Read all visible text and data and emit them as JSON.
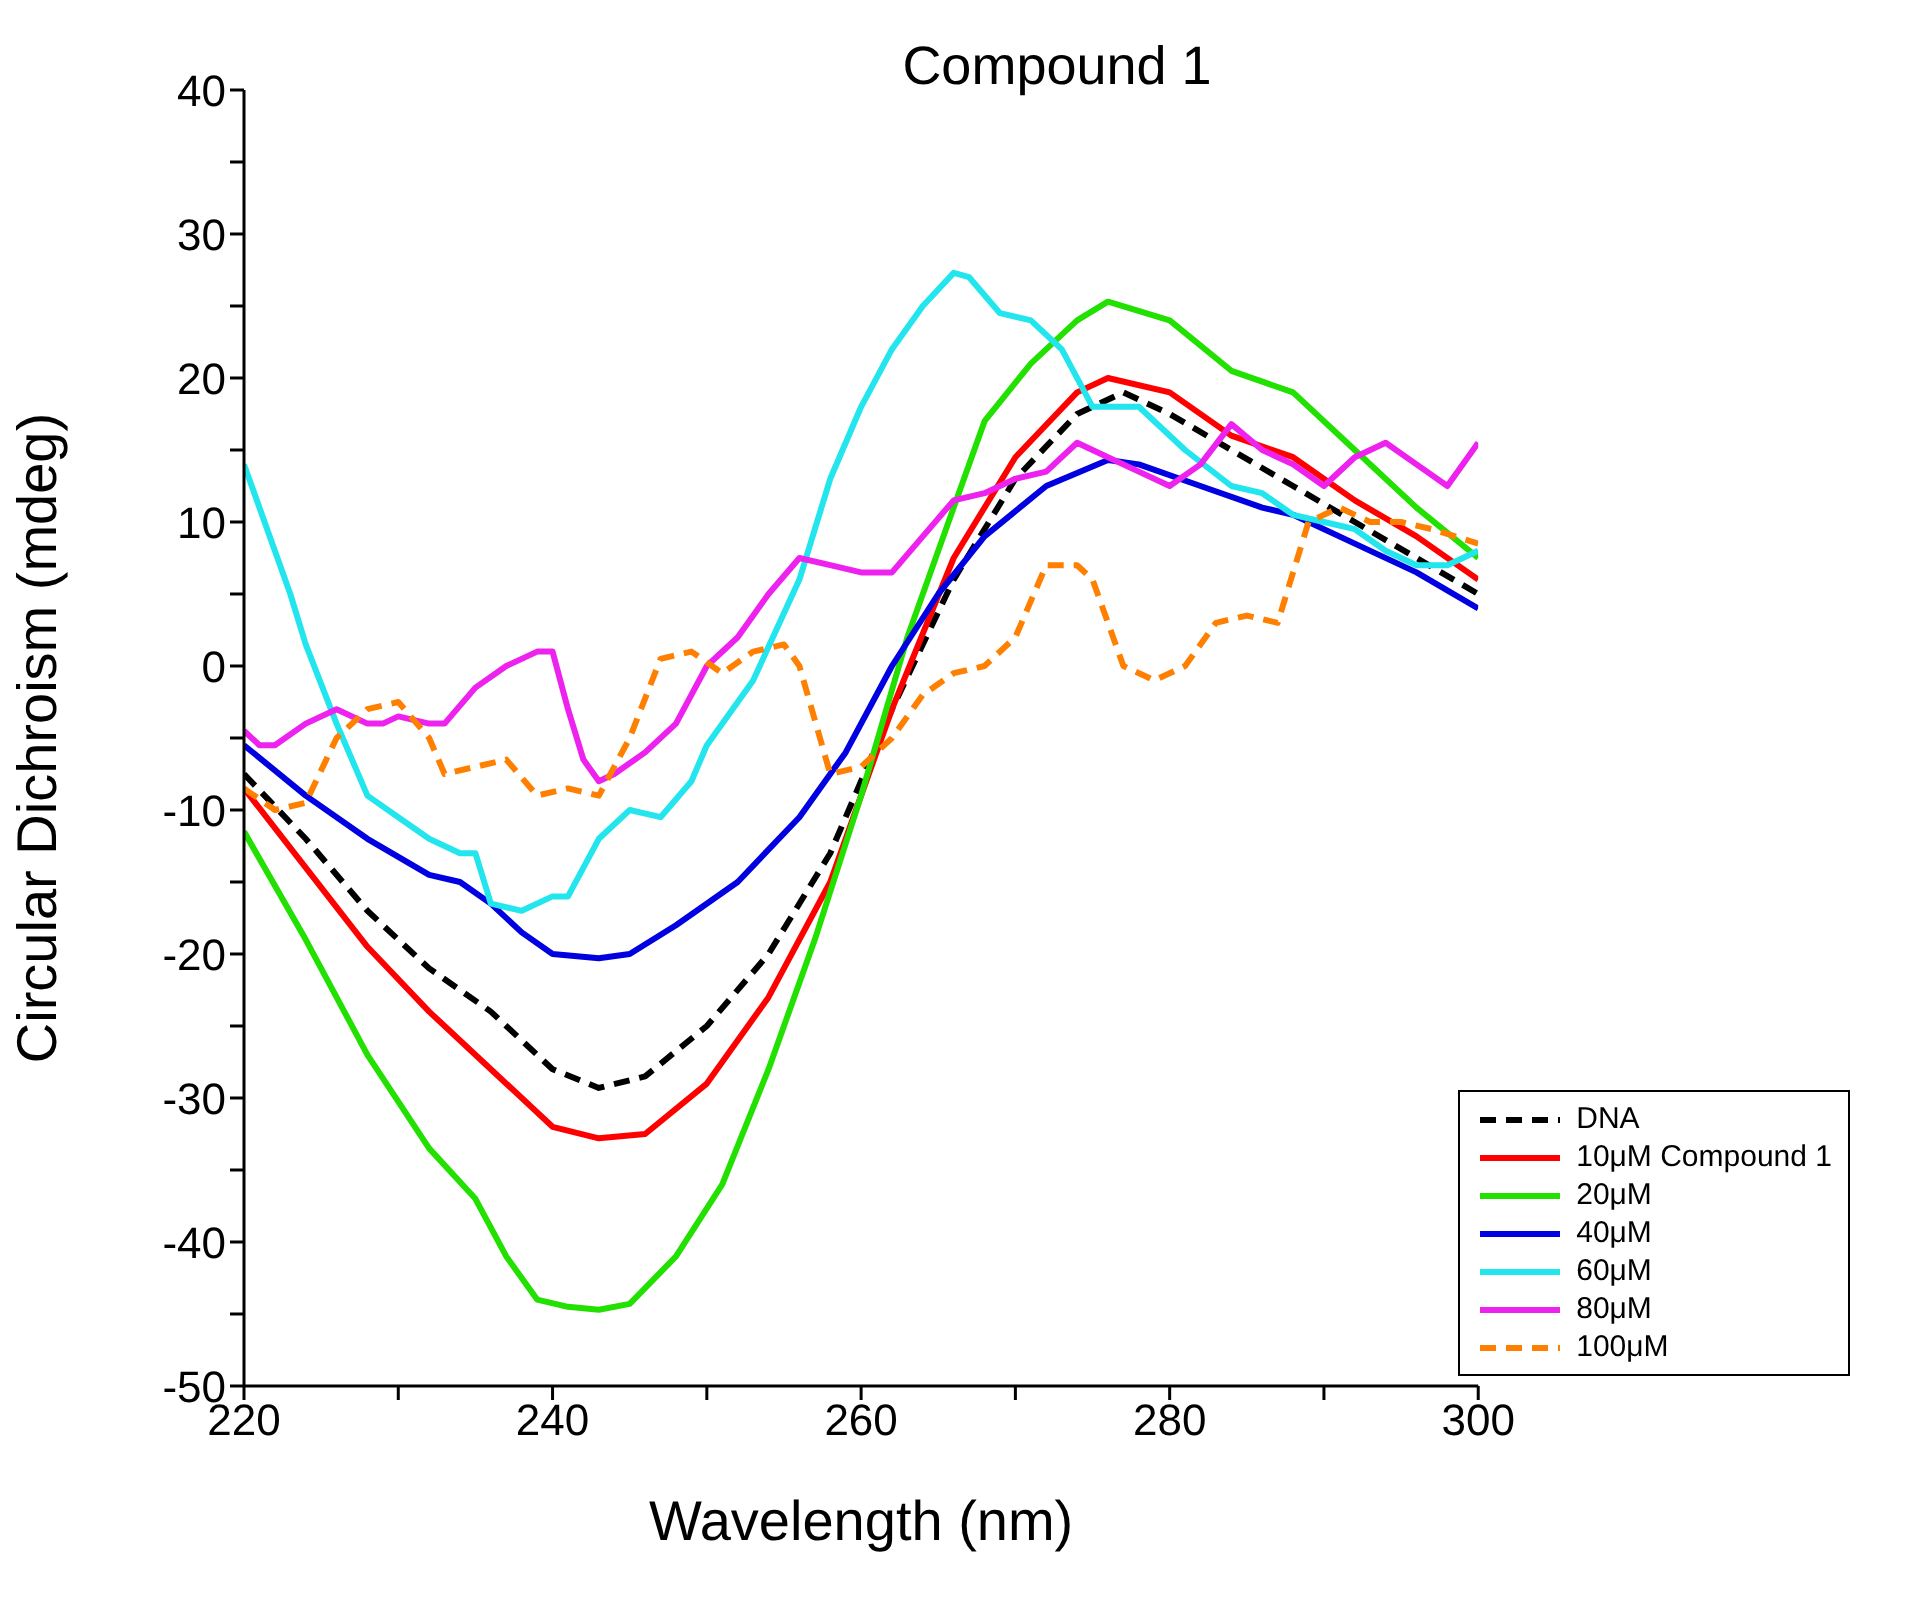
{
  "chart_data": {
    "type": "line",
    "title": "Compound 1",
    "xlabel": "Wavelength (nm)",
    "ylabel": "Circular Dichroism (mdeg)",
    "xlim": [
      220,
      300
    ],
    "xticks": [
      220,
      {
        "value": 230,
        "label": null
      },
      240,
      {
        "value": 250,
        "label": null
      },
      260,
      {
        "value": 270,
        "label": null
      },
      280,
      {
        "value": 290,
        "label": null
      },
      300
    ],
    "ylim": [
      -50,
      40
    ],
    "yticks": [
      -50,
      {
        "value": -45,
        "label": null
      },
      -40,
      {
        "value": -35,
        "label": null
      },
      -30,
      {
        "value": -25,
        "label": null
      },
      -20,
      {
        "value": -15,
        "label": null
      },
      -10,
      {
        "value": -5,
        "label": null
      },
      0,
      {
        "value": 5,
        "label": null
      },
      10,
      {
        "value": 15,
        "label": null
      },
      20,
      {
        "value": 25,
        "label": null
      },
      30,
      {
        "value": 35,
        "label": null
      },
      40
    ],
    "grid": false,
    "legend": "bottom right",
    "marker": "none",
    "series": [
      {
        "name": "DNA",
        "color": "#000000",
        "line_style": "dashed",
        "x": [
          220,
          224,
          228,
          232,
          236,
          240,
          243,
          246,
          250,
          254,
          258,
          262,
          266,
          270,
          274,
          277,
          280,
          284,
          288,
          292,
          296,
          300
        ],
        "values": [
          -7.5,
          -12,
          -17,
          -21,
          -24,
          -28,
          -29.3,
          -28.5,
          -25,
          -20,
          -13,
          -3,
          6,
          13,
          17.5,
          19,
          17.5,
          15,
          12.5,
          10,
          7.5,
          5
        ]
      },
      {
        "name": "10μM Compound 1",
        "color": "#ff0000",
        "line_style": "solid",
        "x": [
          220,
          224,
          228,
          232,
          236,
          240,
          243,
          246,
          250,
          254,
          258,
          262,
          266,
          270,
          274,
          276,
          280,
          284,
          288,
          292,
          296,
          300
        ],
        "values": [
          -8.5,
          -14,
          -19.5,
          -24,
          -28,
          -32,
          -32.8,
          -32.5,
          -29,
          -23,
          -15,
          -3,
          7.5,
          14.5,
          19,
          20,
          19,
          16,
          14.5,
          11.5,
          9,
          6
        ]
      },
      {
        "name": "20μM",
        "color": "#22e000",
        "line_style": "solid",
        "x": [
          220,
          224,
          228,
          232,
          235,
          237,
          239,
          241,
          243,
          245,
          248,
          251,
          254,
          257,
          260,
          263,
          266,
          268,
          271,
          274,
          276,
          280,
          284,
          288,
          292,
          296,
          300
        ],
        "values": [
          -11.5,
          -19,
          -27,
          -33.5,
          -37,
          -41,
          -44,
          -44.5,
          -44.7,
          -44.3,
          -41,
          -36,
          -28,
          -19,
          -9,
          2,
          11,
          17,
          21,
          24,
          25.3,
          24,
          20.5,
          19,
          15,
          11,
          7.5
        ]
      },
      {
        "name": "40μM",
        "color": "#0000e0",
        "line_style": "solid",
        "x": [
          220,
          224,
          228,
          232,
          234,
          236,
          238,
          240,
          243,
          245,
          248,
          252,
          256,
          259,
          262,
          265,
          268,
          272,
          276,
          278,
          282,
          286,
          288,
          292,
          296,
          300
        ],
        "values": [
          -5.5,
          -9,
          -12,
          -14.5,
          -15,
          -16.5,
          -18.5,
          -20,
          -20.3,
          -20,
          -18,
          -15,
          -10.5,
          -6,
          0,
          5,
          9,
          12.5,
          14.3,
          14,
          12.5,
          11,
          10.5,
          8.5,
          6.5,
          4
        ]
      },
      {
        "name": "60μM",
        "color": "#22e5ee",
        "line_style": "solid",
        "x": [
          220,
          222,
          223,
          224,
          226,
          228,
          230,
          232,
          234,
          235,
          236,
          238,
          240,
          241,
          243,
          245,
          247,
          249,
          250,
          253,
          256,
          258,
          260,
          262,
          264,
          266,
          267,
          269,
          271,
          273,
          275,
          278,
          281,
          284,
          286,
          288,
          290,
          292,
          294,
          296,
          298,
          300
        ],
        "values": [
          14,
          8,
          5,
          1.5,
          -4,
          -9,
          -10.5,
          -12,
          -13,
          -13,
          -16.5,
          -17,
          -16,
          -16,
          -12,
          -10,
          -10.5,
          -8,
          -5.5,
          -1,
          6,
          13,
          18,
          22,
          25,
          27.3,
          27,
          24.5,
          24,
          22,
          18,
          18,
          15,
          12.5,
          12,
          10.5,
          10,
          9.5,
          8,
          7,
          7,
          8
        ]
      },
      {
        "name": "80μM",
        "color": "#ee22ee",
        "line_style": "solid",
        "x": [
          220,
          221,
          222,
          224,
          226,
          228,
          229,
          230,
          232,
          233,
          235,
          237,
          239,
          240,
          241,
          242,
          243,
          244,
          246,
          248,
          250,
          252,
          254,
          256,
          258,
          260,
          262,
          264,
          266,
          268,
          270,
          272,
          274,
          276,
          278,
          280,
          282,
          284,
          286,
          288,
          290,
          292,
          294,
          296,
          298,
          300
        ],
        "values": [
          -4.5,
          -5.5,
          -5.5,
          -4,
          -3,
          -4,
          -4,
          -3.5,
          -4,
          -4,
          -1.5,
          0,
          1,
          1,
          -3,
          -6.5,
          -8,
          -7.5,
          -6,
          -4,
          0,
          2,
          5,
          7.5,
          7,
          6.5,
          6.5,
          9,
          11.5,
          12,
          13,
          13.5,
          15.5,
          14.5,
          13.5,
          12.5,
          14,
          16.8,
          15,
          14,
          12.5,
          14.5,
          15.5,
          14,
          12.5,
          15.5
        ]
      },
      {
        "name": "100μM",
        "color": "#ff8000",
        "line_style": "dashed",
        "x": [
          220,
          222,
          224,
          226,
          228,
          230,
          232,
          233,
          235,
          237,
          239,
          241,
          243,
          245,
          247,
          249,
          251,
          253,
          255,
          256,
          258,
          260,
          262,
          264,
          266,
          268,
          270,
          272,
          274,
          275,
          277,
          279,
          281,
          283,
          285,
          287,
          289,
          291,
          293,
          295,
          297,
          300
        ],
        "values": [
          -8.5,
          -10,
          -9.5,
          -5,
          -3,
          -2.5,
          -5,
          -7.5,
          -7,
          -6.5,
          -9,
          -8.5,
          -9,
          -5,
          0.5,
          1,
          -0.5,
          1,
          1.5,
          0,
          -7.5,
          -7,
          -5,
          -2,
          -0.5,
          0,
          2,
          7,
          7,
          6,
          0,
          -1,
          0,
          3,
          3.5,
          3,
          10,
          11,
          10,
          10,
          9.5,
          8.5
        ]
      }
    ]
  }
}
